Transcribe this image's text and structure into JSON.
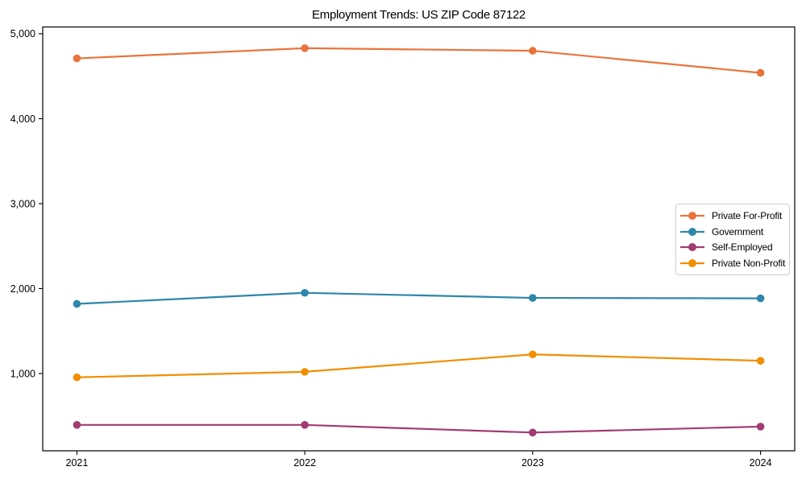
{
  "chart_data": {
    "type": "line",
    "title": "Employment Trends: US ZIP Code 87122",
    "xlabel": "",
    "ylabel": "",
    "x": [
      2021,
      2022,
      2023,
      2024
    ],
    "xtick_labels": [
      "2021",
      "2022",
      "2023",
      "2024"
    ],
    "yticks": [
      1000,
      2000,
      3000,
      4000,
      5000
    ],
    "ytick_labels": [
      "1,000",
      "2,000",
      "3,000",
      "4,000",
      "5,000"
    ],
    "xlim": [
      2020.85,
      2024.15
    ],
    "ylim": [
      90,
      5080
    ],
    "grid": false,
    "legend_position": "center-right",
    "series": [
      {
        "name": "Private For-Profit",
        "color": "#E8743B",
        "values": [
          4710,
          4830,
          4800,
          4540
        ]
      },
      {
        "name": "Government",
        "color": "#2E86AB",
        "values": [
          1820,
          1950,
          1890,
          1885
        ]
      },
      {
        "name": "Self-Employed",
        "color": "#A23B72",
        "values": [
          395,
          395,
          305,
          375
        ]
      },
      {
        "name": "Private Non-Profit",
        "color": "#F18F01",
        "values": [
          955,
          1020,
          1225,
          1150
        ]
      }
    ]
  }
}
